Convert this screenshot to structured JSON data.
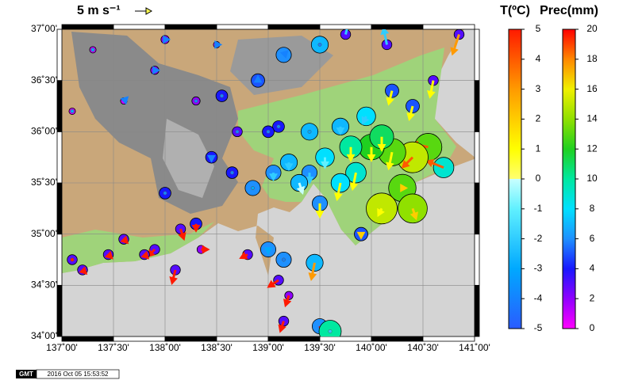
{
  "map": {
    "scale_label": "5 m s⁻¹",
    "scale_speed": 5,
    "xlim": [
      137,
      141
    ],
    "ylim": [
      34,
      37
    ],
    "xticks": [
      {
        "value": 137,
        "label": "137˚00'"
      },
      {
        "value": 137.5,
        "label": "137˚30'"
      },
      {
        "value": 138,
        "label": "138˚00'"
      },
      {
        "value": 138.5,
        "label": "138˚30'"
      },
      {
        "value": 139,
        "label": "139˚00'"
      },
      {
        "value": 139.5,
        "label": "139˚30'"
      },
      {
        "value": 140,
        "label": "140˚00'"
      },
      {
        "value": 140.5,
        "label": "140˚30'"
      },
      {
        "value": 141,
        "label": "141˚00'"
      }
    ],
    "yticks": [
      {
        "value": 34,
        "label": "34˚00'"
      },
      {
        "value": 34.5,
        "label": "34˚30'"
      },
      {
        "value": 35,
        "label": "35˚00'"
      },
      {
        "value": 35.5,
        "label": "35˚30'"
      },
      {
        "value": 36,
        "label": "36˚00'"
      },
      {
        "value": 36.5,
        "label": "36˚30'"
      },
      {
        "value": 37,
        "label": "37˚00'"
      }
    ],
    "temp_title": "T(ºC)",
    "temp_lim": [
      -5,
      5
    ],
    "temp_ticks": [
      -5,
      -4,
      -3,
      -2,
      -1,
      0,
      1,
      2,
      3,
      4,
      5
    ],
    "temp_cmap": [
      [
        -5,
        "#2a5cff"
      ],
      [
        -3,
        "#00a8ff"
      ],
      [
        -1,
        "#60f0ff"
      ],
      [
        0,
        "#c8ffff"
      ],
      [
        0,
        "#ffff70"
      ],
      [
        1,
        "#ffff00"
      ],
      [
        3,
        "#ff9a00"
      ],
      [
        5,
        "#ff1a00"
      ]
    ],
    "prec_title": "Prec(mm)",
    "prec_lim": [
      0,
      20
    ],
    "prec_ticks": [
      0,
      2,
      4,
      6,
      8,
      10,
      12,
      14,
      16,
      18,
      20
    ],
    "prec_cmap": [
      [
        0,
        "#ff00ff"
      ],
      [
        2,
        "#9000ff"
      ],
      [
        4,
        "#1818ff"
      ],
      [
        6,
        "#1e90ff"
      ],
      [
        8,
        "#00e0ff"
      ],
      [
        10,
        "#00e8a0"
      ],
      [
        12,
        "#20d020"
      ],
      [
        14,
        "#90e000"
      ],
      [
        16,
        "#f0f000"
      ],
      [
        18,
        "#ff8800"
      ],
      [
        20,
        "#ff0000"
      ]
    ],
    "stations": [
      {
        "lon": 140.85,
        "lat": 36.95,
        "prec": 3,
        "temp": 3,
        "u": -2,
        "v": -6
      },
      {
        "lon": 140.55,
        "lat": 35.85,
        "prec": 13,
        "temp": 4,
        "u": -5,
        "v": 1
      },
      {
        "lon": 140.7,
        "lat": 35.65,
        "prec": 9,
        "temp": 4,
        "u": -5,
        "v": 2
      },
      {
        "lon": 140.4,
        "lat": 35.75,
        "prec": 15,
        "temp": 4,
        "u": -3,
        "v": -3
      },
      {
        "lon": 140.2,
        "lat": 35.8,
        "prec": 13,
        "temp": 1,
        "u": -1,
        "v": -5
      },
      {
        "lon": 140.0,
        "lat": 35.85,
        "prec": 12,
        "temp": 1,
        "u": 0,
        "v": -4
      },
      {
        "lon": 140.3,
        "lat": 35.45,
        "prec": 13,
        "temp": 2,
        "u": 1,
        "v": 0
      },
      {
        "lon": 140.4,
        "lat": 35.25,
        "prec": 14,
        "temp": 2,
        "u": 1,
        "v": -3
      },
      {
        "lon": 140.1,
        "lat": 35.25,
        "prec": 15,
        "temp": 1,
        "u": -1,
        "v": -2
      },
      {
        "lon": 139.9,
        "lat": 35.0,
        "prec": 5,
        "temp": 2,
        "u": 0,
        "v": -1
      },
      {
        "lon": 139.85,
        "lat": 35.6,
        "prec": 9,
        "temp": 1,
        "u": -1,
        "v": -5
      },
      {
        "lon": 139.7,
        "lat": 35.5,
        "prec": 8,
        "temp": 1,
        "u": -1,
        "v": -5
      },
      {
        "lon": 139.55,
        "lat": 35.75,
        "prec": 8,
        "temp": -1,
        "u": 0,
        "v": -3
      },
      {
        "lon": 139.4,
        "lat": 35.6,
        "prec": 6,
        "temp": -2,
        "u": 0,
        "v": -3
      },
      {
        "lon": 139.2,
        "lat": 35.7,
        "prec": 7,
        "temp": -2,
        "u": 0,
        "v": -2
      },
      {
        "lon": 139.05,
        "lat": 35.6,
        "prec": 6,
        "temp": -2,
        "u": 0,
        "v": -2
      },
      {
        "lon": 139.5,
        "lat": 35.3,
        "prec": 6,
        "temp": 1,
        "u": 0,
        "v": -4
      },
      {
        "lon": 139.3,
        "lat": 35.5,
        "prec": 7,
        "temp": 0,
        "u": 1,
        "v": -3
      },
      {
        "lon": 138.85,
        "lat": 35.45,
        "prec": 6,
        "temp": -3,
        "u": 0,
        "v": 0
      },
      {
        "lon": 138.65,
        "lat": 35.6,
        "prec": 4,
        "temp": -4,
        "u": 0,
        "v": 0
      },
      {
        "lon": 138.45,
        "lat": 35.75,
        "prec": 4,
        "temp": -4,
        "u": 0,
        "v": -1
      },
      {
        "lon": 138.3,
        "lat": 35.1,
        "prec": 4,
        "temp": 5,
        "u": 0,
        "v": -2
      },
      {
        "lon": 138.15,
        "lat": 35.05,
        "prec": 3,
        "temp": 5,
        "u": 1,
        "v": -3
      },
      {
        "lon": 137.9,
        "lat": 34.85,
        "prec": 3,
        "temp": 5,
        "u": -2,
        "v": -2
      },
      {
        "lon": 138.1,
        "lat": 34.65,
        "prec": 3,
        "temp": 5,
        "u": -1,
        "v": -4
      },
      {
        "lon": 138.35,
        "lat": 34.85,
        "prec": 2,
        "temp": 5,
        "u": 2,
        "v": 0
      },
      {
        "lon": 139.0,
        "lat": 34.85,
        "prec": 6,
        "temp": -3,
        "u": 0,
        "v": -1
      },
      {
        "lon": 139.15,
        "lat": 34.75,
        "prec": 6,
        "temp": -4,
        "u": 0,
        "v": 0
      },
      {
        "lon": 138.8,
        "lat": 34.8,
        "prec": 3,
        "temp": 5,
        "u": -2,
        "v": -1
      },
      {
        "lon": 139.1,
        "lat": 34.55,
        "prec": 3,
        "temp": 5,
        "u": -3,
        "v": -2
      },
      {
        "lon": 139.45,
        "lat": 34.72,
        "prec": 7,
        "temp": 3,
        "u": -1,
        "v": -5
      },
      {
        "lon": 139.2,
        "lat": 34.4,
        "prec": 2,
        "temp": 5,
        "u": -1,
        "v": -3
      },
      {
        "lon": 139.15,
        "lat": 34.15,
        "prec": 3,
        "temp": 5,
        "u": -1,
        "v": -3
      },
      {
        "lon": 139.5,
        "lat": 34.1,
        "prec": 6,
        "temp": 5,
        "u": 1,
        "v": -5
      },
      {
        "lon": 139.6,
        "lat": 34.05,
        "prec": 10,
        "temp": -2,
        "u": 0,
        "v": 0
      },
      {
        "lon": 137.1,
        "lat": 34.75,
        "prec": 3,
        "temp": 5,
        "u": 0,
        "v": 0
      },
      {
        "lon": 137.2,
        "lat": 34.65,
        "prec": 3,
        "temp": 5,
        "u": 1,
        "v": -1
      },
      {
        "lon": 137.45,
        "lat": 34.8,
        "prec": 3,
        "temp": 5,
        "u": 1,
        "v": -1
      },
      {
        "lon": 137.8,
        "lat": 34.8,
        "prec": 3,
        "temp": 5,
        "u": 1,
        "v": -1
      },
      {
        "lon": 137.6,
        "lat": 34.95,
        "prec": 3,
        "temp": 5,
        "u": 1,
        "v": -1
      },
      {
        "lon": 138.0,
        "lat": 35.4,
        "prec": 4,
        "temp": -4,
        "u": 0,
        "v": 0
      },
      {
        "lon": 138.55,
        "lat": 36.35,
        "prec": 4,
        "temp": -4,
        "u": 0,
        "v": 0
      },
      {
        "lon": 138.9,
        "lat": 36.5,
        "prec": 5,
        "temp": -4,
        "u": 0,
        "v": 1
      },
      {
        "lon": 139.15,
        "lat": 36.75,
        "prec": 6,
        "temp": -4,
        "u": 1,
        "v": 1
      },
      {
        "lon": 139.5,
        "lat": 36.85,
        "prec": 7,
        "temp": -4,
        "u": 0,
        "v": 0
      },
      {
        "lon": 139.75,
        "lat": 36.95,
        "prec": 3,
        "temp": -2,
        "u": 1,
        "v": 4
      },
      {
        "lon": 140.15,
        "lat": 36.85,
        "prec": 3,
        "temp": -2,
        "u": -1,
        "v": 5
      },
      {
        "lon": 140.2,
        "lat": 36.4,
        "prec": 5,
        "temp": 1,
        "u": -1,
        "v": -4
      },
      {
        "lon": 140.4,
        "lat": 36.25,
        "prec": 5,
        "temp": 1,
        "u": -1,
        "v": -4
      },
      {
        "lon": 140.6,
        "lat": 36.5,
        "prec": 3,
        "temp": 1,
        "u": -1,
        "v": -5
      },
      {
        "lon": 139.95,
        "lat": 36.15,
        "prec": 8,
        "temp": -2,
        "u": -1,
        "v": -2
      },
      {
        "lon": 139.7,
        "lat": 36.05,
        "prec": 7,
        "temp": -2,
        "u": 0,
        "v": -2
      },
      {
        "lon": 139.4,
        "lat": 36.0,
        "prec": 7,
        "temp": -3,
        "u": 0,
        "v": 0
      },
      {
        "lon": 139.1,
        "lat": 36.05,
        "prec": 4,
        "temp": -4,
        "u": 0,
        "v": 0
      },
      {
        "lon": 138.7,
        "lat": 36.0,
        "prec": 3,
        "temp": -4,
        "u": 0,
        "v": 0
      },
      {
        "lon": 138.3,
        "lat": 36.3,
        "prec": 2,
        "temp": -4,
        "u": 0,
        "v": 0
      },
      {
        "lon": 137.9,
        "lat": 36.6,
        "prec": 2,
        "temp": -4,
        "u": 1,
        "v": 0
      },
      {
        "lon": 137.6,
        "lat": 36.3,
        "prec": 1,
        "temp": -4,
        "u": 1,
        "v": 1
      },
      {
        "lon": 137.3,
        "lat": 36.8,
        "prec": 1,
        "temp": -3,
        "u": 0,
        "v": 0
      },
      {
        "lon": 137.1,
        "lat": 36.2,
        "prec": 1,
        "temp": -3,
        "u": 0,
        "v": 0
      },
      {
        "lon": 138.0,
        "lat": 36.9,
        "prec": 2,
        "temp": -4,
        "u": 1,
        "v": 0
      },
      {
        "lon": 138.5,
        "lat": 36.85,
        "prec": 1,
        "temp": -4,
        "u": 1,
        "v": 0
      },
      {
        "lon": 139.0,
        "lat": 36.0,
        "prec": 4,
        "temp": -4,
        "u": 0,
        "v": 0
      },
      {
        "lon": 140.1,
        "lat": 35.95,
        "prec": 11,
        "temp": 1,
        "u": 0,
        "v": -4
      },
      {
        "lon": 139.8,
        "lat": 35.85,
        "prec": 10,
        "temp": 1,
        "u": 0,
        "v": -4
      }
    ],
    "logo": "GMT",
    "timestamp": "2016 Oct 05 15:53:52"
  }
}
